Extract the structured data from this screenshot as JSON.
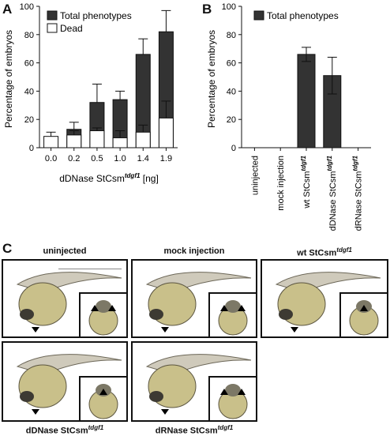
{
  "panels": {
    "a": "A",
    "b": "B",
    "c": "C"
  },
  "chart_data": [
    {
      "type": "bar",
      "stacked": true,
      "categories": [
        "0.0",
        "0.2",
        "0.5",
        "1.0",
        "1.4",
        "1.9"
      ],
      "series": [
        {
          "name": "Total phenotypes",
          "color": "#333333",
          "values": [
            0,
            13,
            32,
            34,
            66,
            82
          ],
          "errors": [
            0,
            5,
            13,
            6,
            11,
            15
          ]
        },
        {
          "name": "Dead",
          "color": "#ffffff",
          "values": [
            8,
            9,
            12,
            7,
            11,
            21
          ],
          "errors": [
            3,
            3,
            2,
            5,
            5,
            12
          ]
        }
      ],
      "legend": [
        "Total phenotypes",
        "Dead"
      ],
      "ylabel": "Percentage of embryos",
      "xlabel_main": "dDNase StCsm",
      "xlabel_sup": "tdgf1",
      "xlabel_unit": " [ng]",
      "ylim": [
        0,
        100
      ],
      "yticks": [
        0,
        20,
        40,
        60,
        80,
        100
      ]
    },
    {
      "type": "bar",
      "categories": [
        {
          "main": "uninjected",
          "sup": ""
        },
        {
          "main": "mock injection",
          "sup": ""
        },
        {
          "main": "wt StCsm",
          "sup": "tdgf1"
        },
        {
          "main": "dDNase StCsm",
          "sup": "tdgf1"
        },
        {
          "main": "dRNase StCsm",
          "sup": "tdgf1"
        }
      ],
      "series": [
        {
          "name": "Total phenotypes",
          "color": "#333333",
          "values": [
            0,
            0,
            66,
            51,
            0
          ],
          "errors": [
            0,
            0,
            5,
            13,
            0
          ]
        }
      ],
      "legend": [
        "Total phenotypes"
      ],
      "ylabel": "Percentage of embryos",
      "ylim": [
        0,
        100
      ],
      "yticks": [
        0,
        20,
        40,
        60,
        80,
        100
      ]
    }
  ],
  "images": [
    {
      "main": "uninjected",
      "sup": ""
    },
    {
      "main": "mock injection",
      "sup": ""
    },
    {
      "main": "wt StCsm",
      "sup": "tdgf1"
    },
    {
      "main": "dDNase StCsm",
      "sup": "tdgf1"
    },
    {
      "main": "dRNase StCsm",
      "sup": "tdgf1"
    }
  ]
}
